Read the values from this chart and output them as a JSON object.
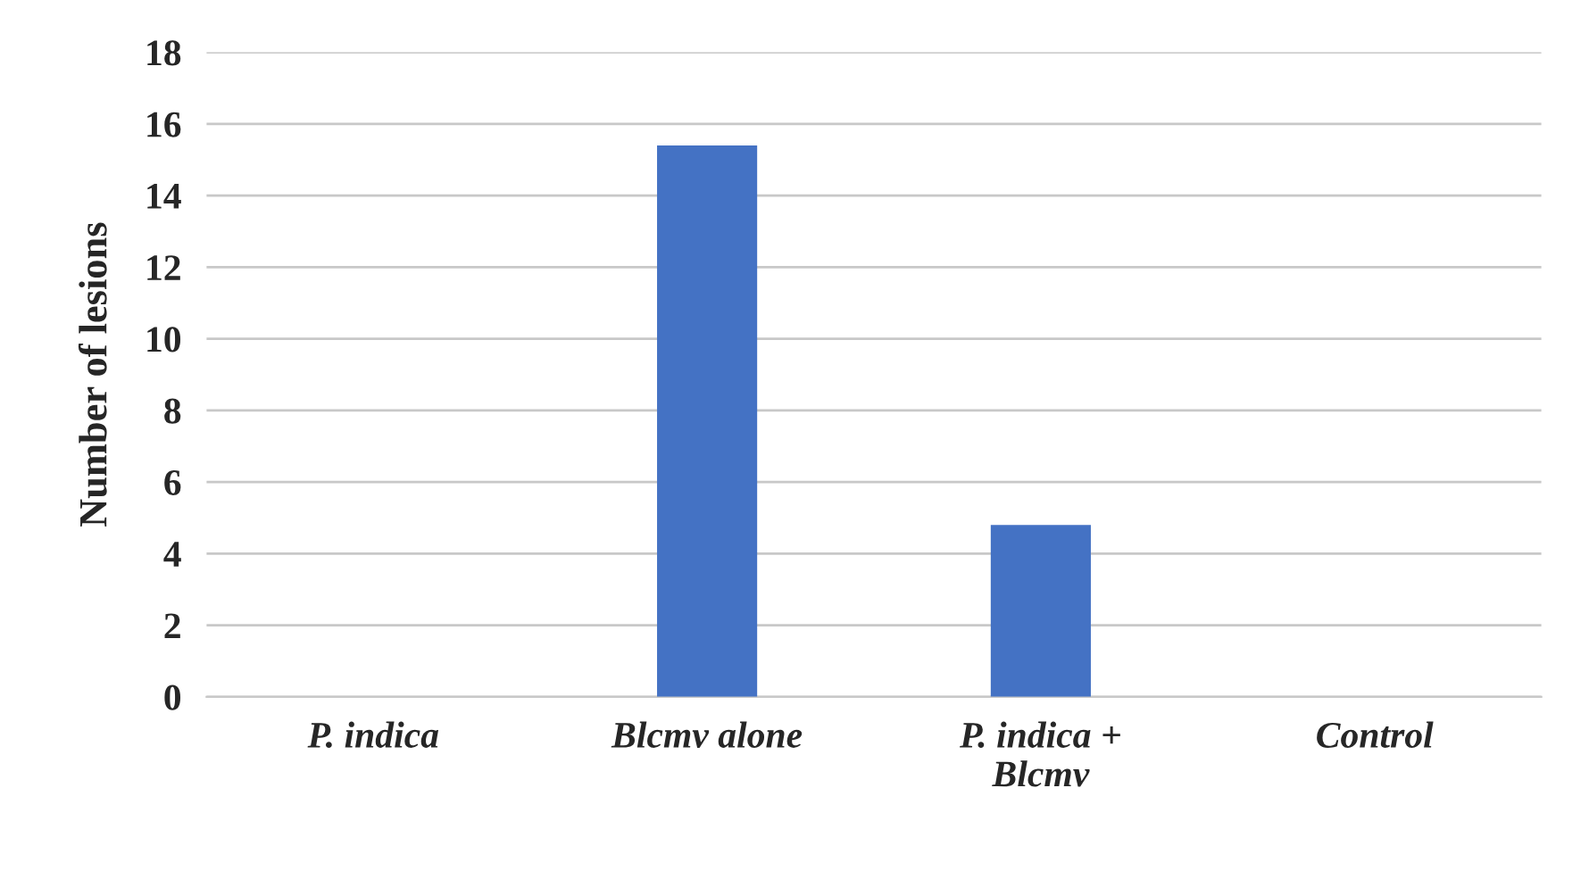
{
  "chart_data": {
    "type": "bar",
    "ylabel": "Number of lesions",
    "categories": [
      "P. indica",
      "Blcmv alone",
      "P. indica + Blcmv",
      "Control"
    ],
    "values": [
      0,
      15.4,
      4.8,
      0
    ],
    "color": "#4472c4",
    "ylim": [
      0,
      18
    ],
    "yticks": [
      0,
      2,
      4,
      6,
      8,
      10,
      12,
      14,
      16,
      18
    ],
    "grid": "y"
  }
}
